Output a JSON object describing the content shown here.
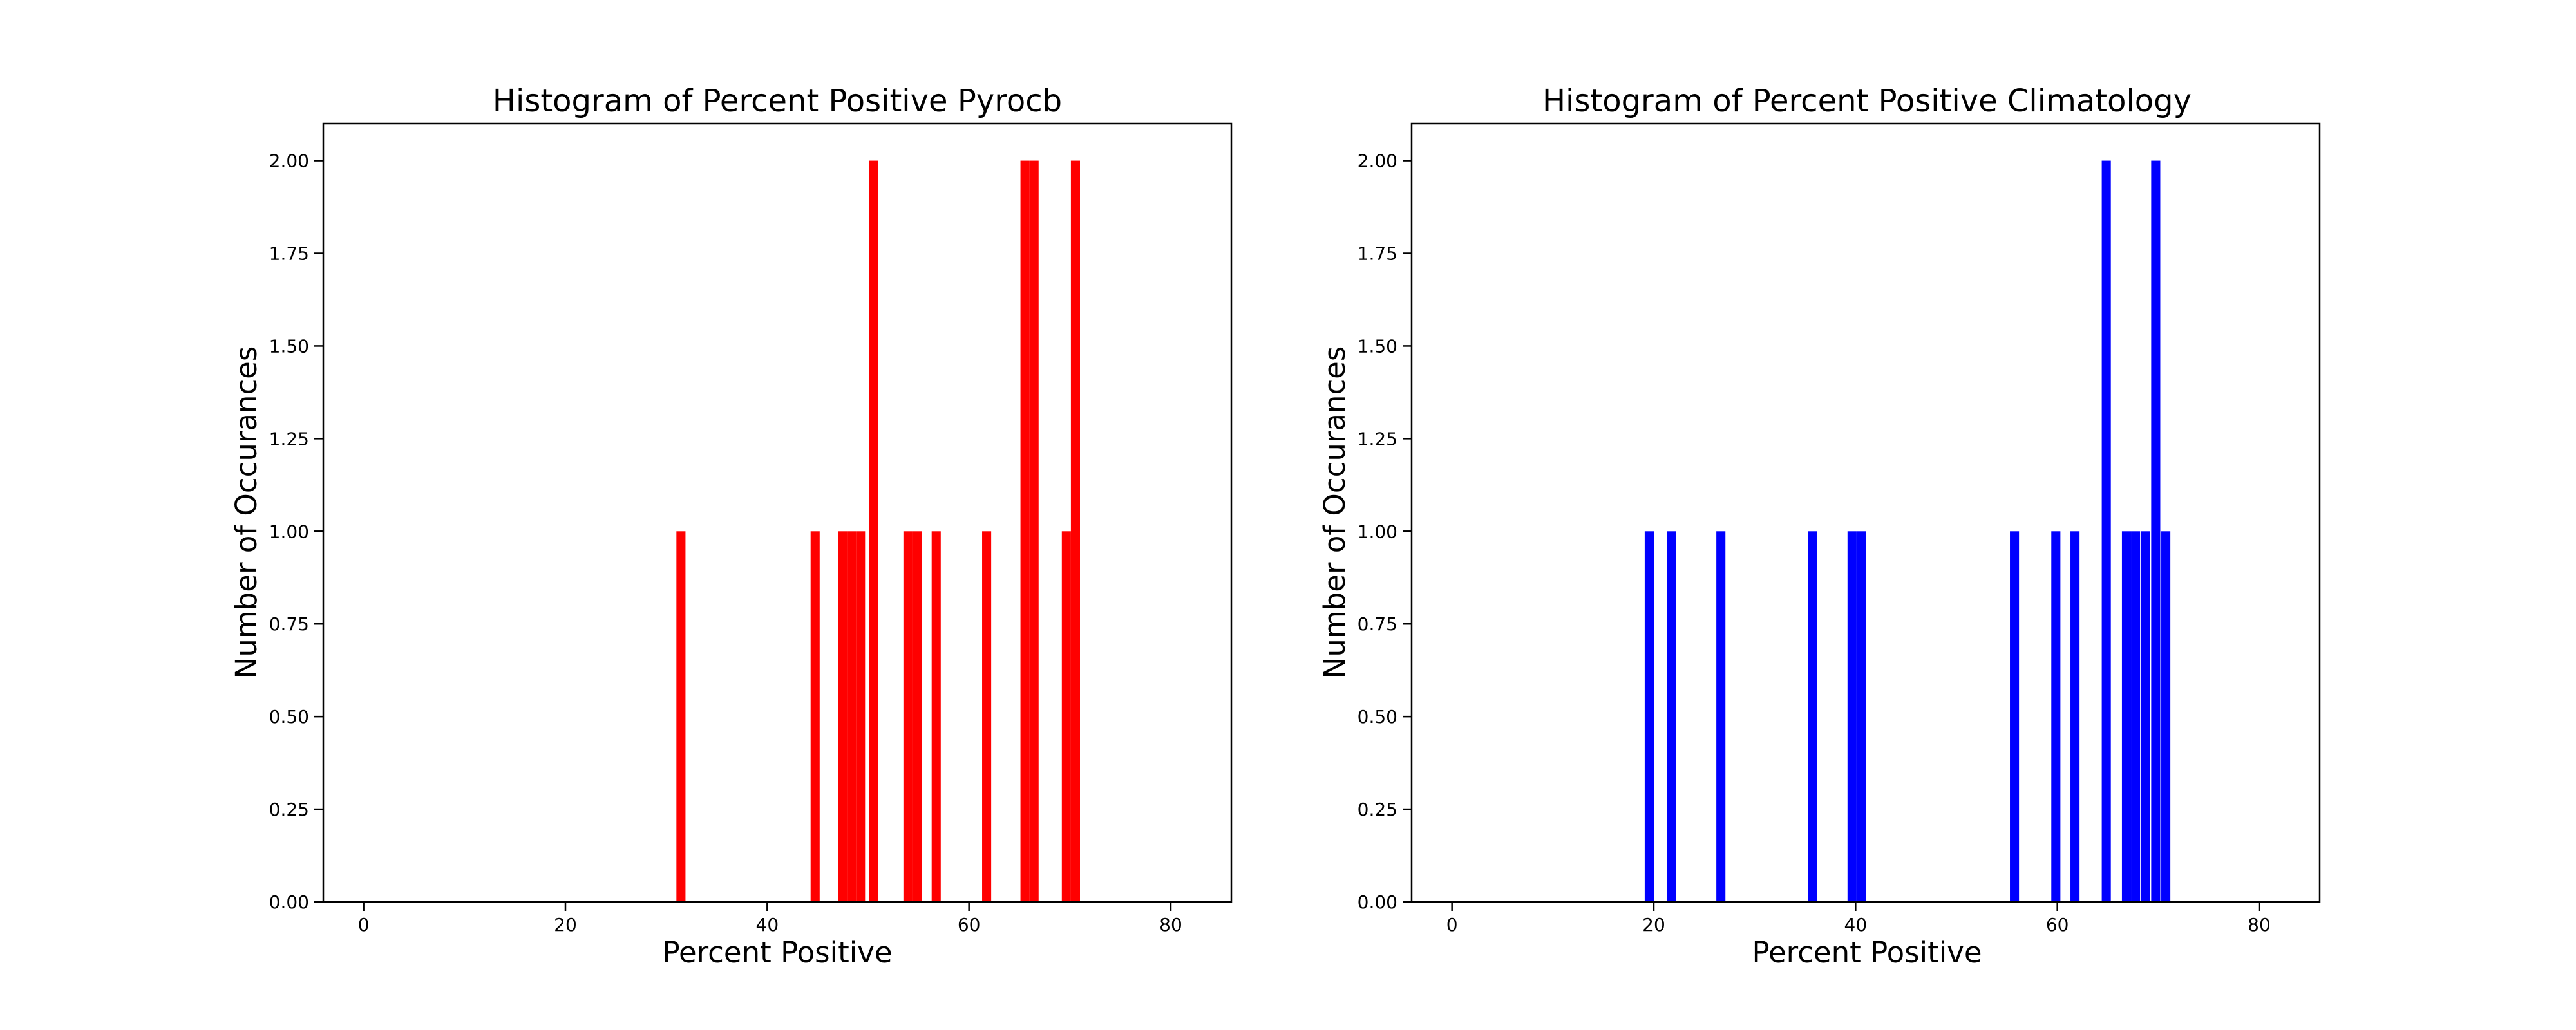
{
  "chart_data": [
    {
      "type": "bar",
      "title": "Histogram of Percent Positive Pyrocb",
      "xlabel": "Percent Positive",
      "ylabel": "Number of Occurances",
      "xlim": [
        -4,
        86
      ],
      "ylim": [
        0,
        2.1
      ],
      "xticks": [
        "0",
        "20",
        "40",
        "60",
        "80"
      ],
      "yticks": [
        "0.00",
        "0.25",
        "0.50",
        "0.75",
        "1.00",
        "1.25",
        "1.50",
        "1.75",
        "2.00"
      ],
      "bin_width": 0.9,
      "color": "#ff0000",
      "grid": false,
      "bins": [
        {
          "x": 31.0,
          "count": 1
        },
        {
          "x": 44.3,
          "count": 1
        },
        {
          "x": 47.0,
          "count": 1
        },
        {
          "x": 47.9,
          "count": 1
        },
        {
          "x": 48.8,
          "count": 1
        },
        {
          "x": 50.1,
          "count": 2
        },
        {
          "x": 53.5,
          "count": 1
        },
        {
          "x": 54.4,
          "count": 1
        },
        {
          "x": 56.3,
          "count": 1
        },
        {
          "x": 61.3,
          "count": 1
        },
        {
          "x": 65.1,
          "count": 2
        },
        {
          "x": 66.0,
          "count": 2
        },
        {
          "x": 69.2,
          "count": 1
        },
        {
          "x": 70.1,
          "count": 2
        }
      ]
    },
    {
      "type": "bar",
      "title": "Histogram of Percent Positive Climatology",
      "xlabel": "Percent Positive",
      "ylabel": "Number of Occurances",
      "xlim": [
        -4,
        86
      ],
      "ylim": [
        0,
        2.1
      ],
      "xticks": [
        "0",
        "20",
        "40",
        "60",
        "80"
      ],
      "yticks": [
        "0.00",
        "0.25",
        "0.50",
        "0.75",
        "1.00",
        "1.25",
        "1.50",
        "1.75",
        "2.00"
      ],
      "bin_width": 0.9,
      "color": "#0000ff",
      "grid": false,
      "bins": [
        {
          "x": 19.1,
          "count": 1
        },
        {
          "x": 21.3,
          "count": 1
        },
        {
          "x": 26.2,
          "count": 1
        },
        {
          "x": 35.3,
          "count": 1
        },
        {
          "x": 39.2,
          "count": 1
        },
        {
          "x": 40.1,
          "count": 1
        },
        {
          "x": 55.3,
          "count": 1
        },
        {
          "x": 59.4,
          "count": 1
        },
        {
          "x": 61.3,
          "count": 1
        },
        {
          "x": 64.4,
          "count": 2
        },
        {
          "x": 66.4,
          "count": 1
        },
        {
          "x": 67.3,
          "count": 1
        },
        {
          "x": 68.3,
          "count": 1
        },
        {
          "x": 69.3,
          "count": 2
        },
        {
          "x": 70.3,
          "count": 1
        }
      ]
    }
  ]
}
